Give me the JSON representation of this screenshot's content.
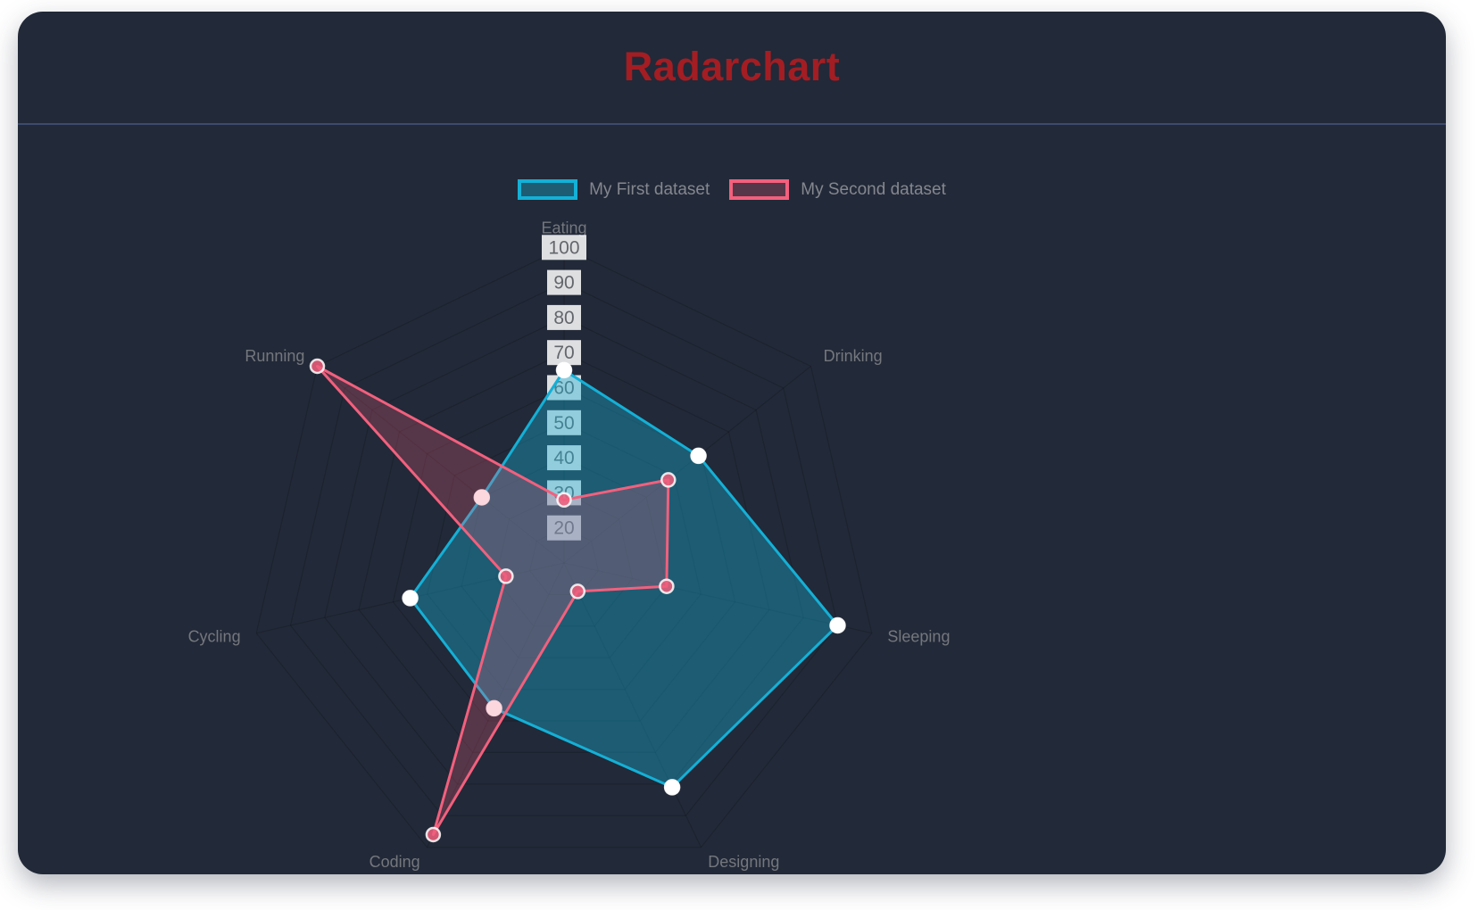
{
  "header": {
    "title": "Radarchart"
  },
  "colors": {
    "panel_background": "#222938",
    "title_red": "#a31d23",
    "divider": "#3d4a6e",
    "grid_line": "rgba(0,0,0,0.16)",
    "tick_backdrop": "rgba(255,255,255,0.85)",
    "tick_text": "#63666b",
    "axis_label_text": "#74777d",
    "legend_text": "#84878e"
  },
  "chart_data": {
    "type": "radar",
    "title": "Radarchart",
    "labels": [
      "Eating",
      "Drinking",
      "Sleeping",
      "Designing",
      "Coding",
      "Cycling",
      "Running"
    ],
    "series": [
      {
        "name": "My First dataset",
        "values": [
          65,
          59,
          90,
          81,
          56,
          55,
          40
        ],
        "border_color": "#14b0d6",
        "fill_color": "rgba(20,176,214,0.38)",
        "point_fill": "#ffffff",
        "point_border": "rgba(255,255,255,0.9)"
      },
      {
        "name": "My Second dataset",
        "values": [
          28,
          48,
          40,
          19,
          96,
          27,
          100
        ],
        "border_color": "#f2607d",
        "fill_color": "rgba(242,96,125,0.25)",
        "point_fill": "rgba(240,95,125,0.85)",
        "point_border": "rgba(255,255,255,0.85)"
      }
    ],
    "scale": {
      "min": 10,
      "max": 100,
      "tick_labels": [
        20,
        30,
        40,
        50,
        60,
        70,
        80,
        90,
        100
      ]
    },
    "legend_position": "top",
    "grid": true
  }
}
